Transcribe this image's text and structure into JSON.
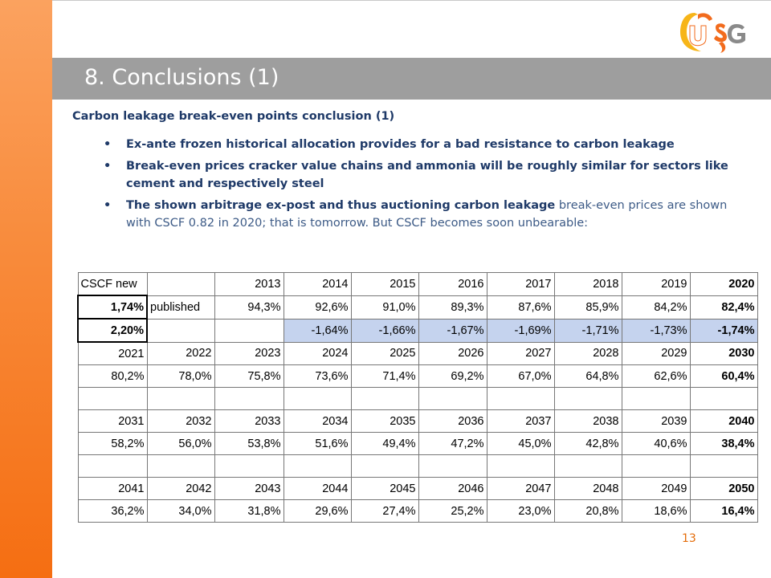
{
  "title": "8. Conclusions (1)",
  "logo": {
    "text": "USG",
    "colors": {
      "orange": "#f26b1d",
      "yellow": "#f7b518",
      "gray": "#8a8a8a"
    }
  },
  "heading": "Carbon leakage break-even points conclusion (1)",
  "bullets": [
    {
      "bold": "Ex-ante frozen historical allocation provides for a bad resistance to carbon leakage",
      "normal": ""
    },
    {
      "bold": "Break-even prices cracker value chains and ammonia will be roughly similar for sectors like cement and respectively steel",
      "normal": ""
    },
    {
      "bold": "The shown arbitrage ex-post and thus auctioning carbon leakage",
      "normal": " break-even prices are shown with CSCF 0.82 in 2020; that is tomorrow. But CSCF becomes soon unbearable:"
    }
  ],
  "table": {
    "rows": [
      [
        "CSCF new",
        "",
        "2013",
        "2014",
        "2015",
        "2016",
        "2017",
        "2018",
        "2019",
        "2020"
      ],
      [
        "1,74%",
        "published",
        "94,3%",
        "92,6%",
        "91,0%",
        "89,3%",
        "87,6%",
        "85,9%",
        "84,2%",
        "82,4%"
      ],
      [
        "2,20%",
        "",
        "",
        "-1,64%",
        "-1,66%",
        "-1,67%",
        "-1,69%",
        "-1,71%",
        "-1,73%",
        "-1,74%"
      ],
      [
        "2021",
        "2022",
        "2023",
        "2024",
        "2025",
        "2026",
        "2027",
        "2028",
        "2029",
        "2030"
      ],
      [
        "80,2%",
        "78,0%",
        "75,8%",
        "73,6%",
        "71,4%",
        "69,2%",
        "67,0%",
        "64,8%",
        "62,6%",
        "60,4%"
      ],
      [
        "",
        "",
        "",
        "",
        "",
        "",
        "",
        "",
        "",
        ""
      ],
      [
        "2031",
        "2032",
        "2033",
        "2034",
        "2035",
        "2036",
        "2037",
        "2038",
        "2039",
        "2040"
      ],
      [
        "58,2%",
        "56,0%",
        "53,8%",
        "51,6%",
        "49,4%",
        "47,2%",
        "45,0%",
        "42,8%",
        "40,6%",
        "38,4%"
      ],
      [
        "",
        "",
        "",
        "",
        "",
        "",
        "",
        "",
        "",
        ""
      ],
      [
        "2041",
        "2042",
        "2043",
        "2044",
        "2045",
        "2046",
        "2047",
        "2048",
        "2049",
        "2050"
      ],
      [
        "36,2%",
        "34,0%",
        "31,8%",
        "29,6%",
        "27,4%",
        "25,2%",
        "23,0%",
        "20,8%",
        "18,6%",
        "16,4%"
      ]
    ],
    "highlight_color": "#c5d3ee"
  },
  "page_number": "13"
}
